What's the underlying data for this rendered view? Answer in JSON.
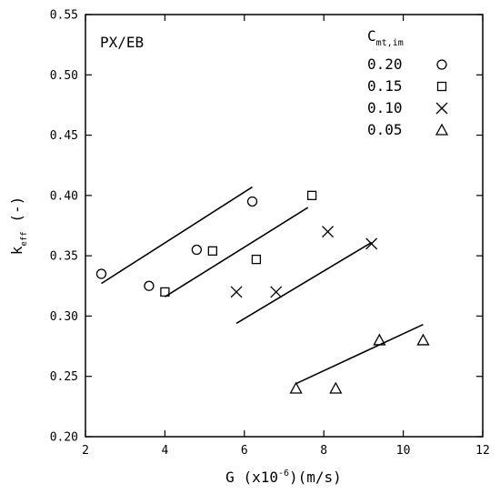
{
  "chart_data": {
    "type": "scatter",
    "annotation": "PX/EB",
    "xlabel": {
      "main": "G  (x10",
      "sup": "-6",
      "rest": ")(m/s)"
    },
    "ylabel": {
      "main": "k",
      "sub": "eff",
      "rest": " (-)"
    },
    "xlim": [
      2,
      12
    ],
    "ylim": [
      0.2,
      0.55
    ],
    "x_ticks": [
      2,
      4,
      6,
      8,
      10,
      12
    ],
    "y_ticks": [
      0.2,
      0.25,
      0.3,
      0.35,
      0.4,
      0.45,
      0.5,
      0.55
    ],
    "y_tick_labels": [
      "0.20",
      "0.25",
      "0.30",
      "0.35",
      "0.40",
      "0.45",
      "0.50",
      "0.55"
    ],
    "grid": false,
    "legend_position": "top-right",
    "legend_title": {
      "main": "C",
      "sub": "mt,im"
    },
    "series": [
      {
        "name": "0.20",
        "marker": "circle",
        "points": [
          [
            2.4,
            0.335
          ],
          [
            3.6,
            0.325
          ],
          [
            4.8,
            0.355
          ],
          [
            6.2,
            0.395
          ]
        ],
        "fit_line": [
          [
            2.4,
            0.327
          ],
          [
            6.2,
            0.407
          ]
        ]
      },
      {
        "name": "0.15",
        "marker": "square",
        "points": [
          [
            4.0,
            0.32
          ],
          [
            5.2,
            0.354
          ],
          [
            6.3,
            0.347
          ],
          [
            7.7,
            0.4
          ]
        ],
        "fit_line": [
          [
            4.0,
            0.316
          ],
          [
            7.6,
            0.39
          ]
        ]
      },
      {
        "name": "0.10",
        "marker": "x",
        "points": [
          [
            5.8,
            0.32
          ],
          [
            6.8,
            0.32
          ],
          [
            8.1,
            0.37
          ],
          [
            9.2,
            0.36
          ]
        ],
        "fit_line": [
          [
            5.8,
            0.294
          ],
          [
            9.2,
            0.361
          ]
        ]
      },
      {
        "name": "0.05",
        "marker": "triangle",
        "points": [
          [
            7.3,
            0.24
          ],
          [
            8.3,
            0.24
          ],
          [
            9.4,
            0.28
          ],
          [
            10.5,
            0.28
          ]
        ],
        "fit_line": [
          [
            7.3,
            0.244
          ],
          [
            10.5,
            0.293
          ]
        ]
      }
    ]
  }
}
